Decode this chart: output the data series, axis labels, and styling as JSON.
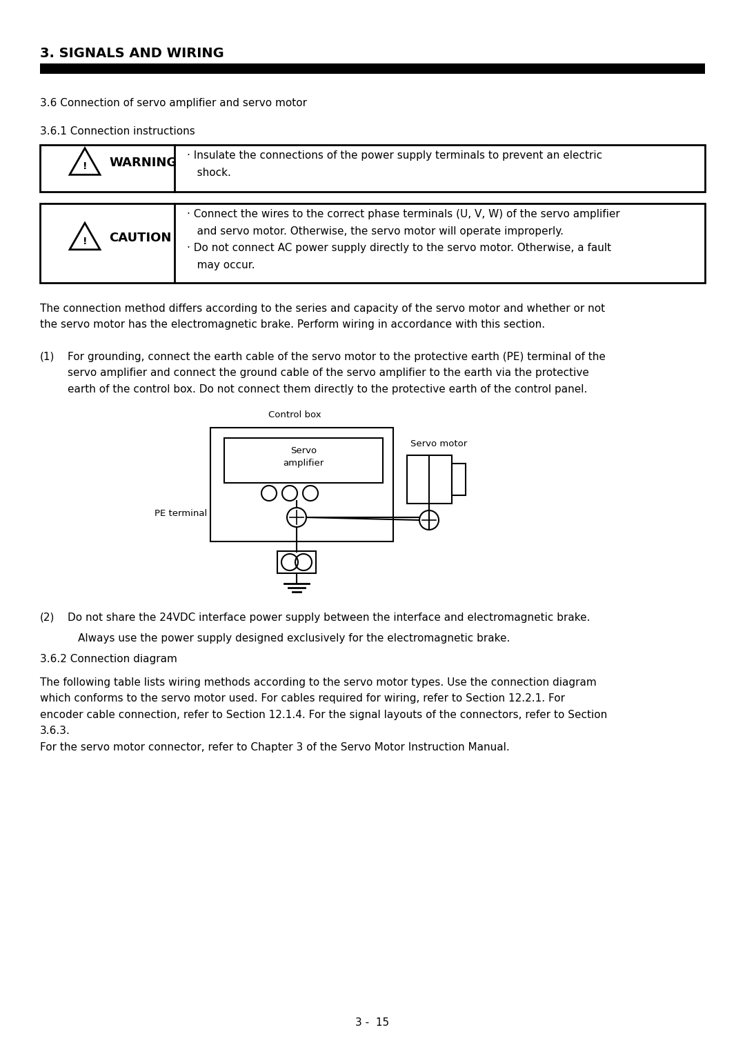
{
  "title": "3. SIGNALS AND WIRING",
  "section_36": "3.6 Connection of servo amplifier and servo motor",
  "section_361": "3.6.1 Connection instructions",
  "warning_label": "WARNING",
  "warning_text": "· Insulate the connections of the power supply terminals to prevent an electric\n   shock.",
  "caution_label": "CAUTION",
  "caution_text": "· Connect the wires to the correct phase terminals (U, V, W) of the servo amplifier\n   and servo motor. Otherwise, the servo motor will operate improperly.\n· Do not connect AC power supply directly to the servo motor. Otherwise, a fault\n   may occur.",
  "para1": "The connection method differs according to the series and capacity of the servo motor and whether or not\nthe servo motor has the electromagnetic brake. Perform wiring in accordance with this section.",
  "item1_label": "(1)",
  "item1_text": "For grounding, connect the earth cable of the servo motor to the protective earth (PE) terminal of the\nservo amplifier and connect the ground cable of the servo amplifier to the earth via the protective\nearth of the control box. Do not connect them directly to the protective earth of the control panel.",
  "diagram_label_control_box": "Control box",
  "diagram_label_servo_amp": "Servo\namplifier",
  "diagram_label_servo_motor": "Servo motor",
  "diagram_label_pe_terminal": "PE terminal",
  "item2_label": "(2)",
  "item2_text_line1": "Do not share the 24VDC interface power supply between the interface and electromagnetic brake.",
  "item2_text_line2": "Always use the power supply designed exclusively for the electromagnetic brake.",
  "section_362": "3.6.2 Connection diagram",
  "para2": "The following table lists wiring methods according to the servo motor types. Use the connection diagram\nwhich conforms to the servo motor used. For cables required for wiring, refer to Section 12.2.1. For\nencoder cable connection, refer to Section 12.1.4. For the signal layouts of the connectors, refer to Section\n3.6.3.\nFor the servo motor connector, refer to Chapter 3 of the Servo Motor Instruction Manual.",
  "page_number": "3 -  15",
  "bg_color": "#ffffff"
}
